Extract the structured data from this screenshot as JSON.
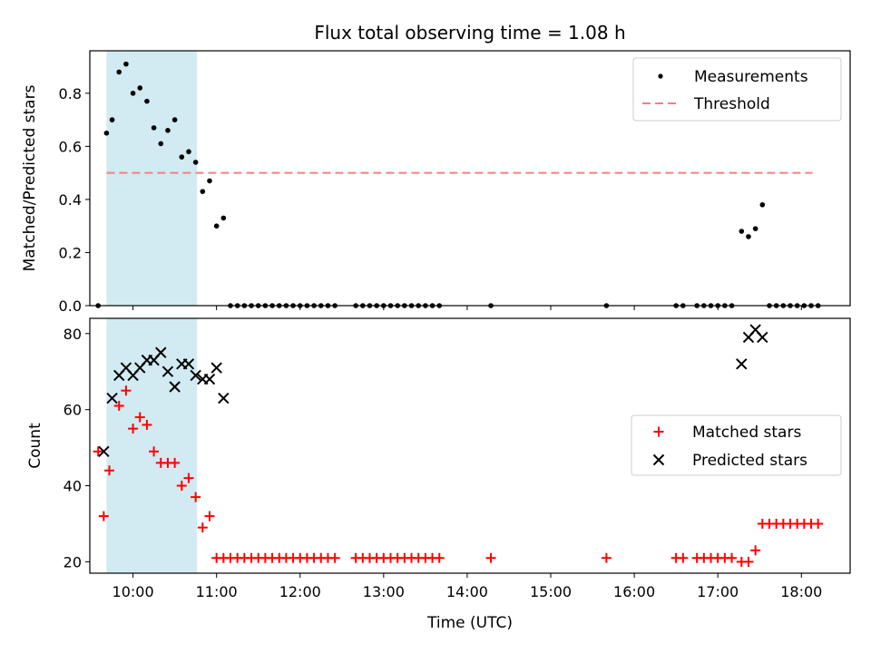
{
  "chart_data": [
    {
      "type": "scatter",
      "title": "Flux total observing time = 1.08 h",
      "ylabel": "Matched/Predicted stars",
      "xlabel": "",
      "xlim": [
        "09:29",
        "18:35"
      ],
      "ylim": [
        0,
        0.96
      ],
      "yticks": [
        "0.0",
        "0.2",
        "0.4",
        "0.6",
        "0.8"
      ],
      "ytick_values": [
        0,
        0.2,
        0.4,
        0.6,
        0.8
      ],
      "xticks_values": [
        "10:00",
        "11:00",
        "12:00",
        "13:00",
        "14:00",
        "15:00",
        "16:00",
        "17:00",
        "18:00"
      ],
      "xticklabels_shown": false,
      "grid": false,
      "legend_position": "top-right",
      "highlight_span": {
        "start": "09:41",
        "end": "10:46",
        "color": "#d2eaf1"
      },
      "series": [
        {
          "name": "Measurements",
          "style": "dot",
          "color": "#000000",
          "points": [
            [
              "09:35",
              0
            ],
            [
              "09:41",
              0.65
            ],
            [
              "09:45",
              0.7
            ],
            [
              "09:50",
              0.88
            ],
            [
              "09:55",
              0.91
            ],
            [
              "10:00",
              0.8
            ],
            [
              "10:05",
              0.82
            ],
            [
              "10:10",
              0.77
            ],
            [
              "10:15",
              0.67
            ],
            [
              "10:20",
              0.61
            ],
            [
              "10:25",
              0.66
            ],
            [
              "10:30",
              0.7
            ],
            [
              "10:35",
              0.56
            ],
            [
              "10:40",
              0.58
            ],
            [
              "10:45",
              0.54
            ],
            [
              "10:50",
              0.43
            ],
            [
              "10:55",
              0.47
            ],
            [
              "11:00",
              0.3
            ],
            [
              "11:05",
              0.33
            ],
            [
              "11:10",
              0
            ],
            [
              "11:15",
              0
            ],
            [
              "11:20",
              0
            ],
            [
              "11:25",
              0
            ],
            [
              "11:30",
              0
            ],
            [
              "11:35",
              0
            ],
            [
              "11:40",
              0
            ],
            [
              "11:45",
              0
            ],
            [
              "11:50",
              0
            ],
            [
              "11:55",
              0
            ],
            [
              "12:00",
              0
            ],
            [
              "12:05",
              0
            ],
            [
              "12:10",
              0
            ],
            [
              "12:15",
              0
            ],
            [
              "12:20",
              0
            ],
            [
              "12:25",
              0
            ],
            [
              "12:40",
              0
            ],
            [
              "12:45",
              0
            ],
            [
              "12:50",
              0
            ],
            [
              "12:55",
              0
            ],
            [
              "13:00",
              0
            ],
            [
              "13:05",
              0
            ],
            [
              "13:10",
              0
            ],
            [
              "13:15",
              0
            ],
            [
              "13:20",
              0
            ],
            [
              "13:25",
              0
            ],
            [
              "13:30",
              0
            ],
            [
              "13:35",
              0
            ],
            [
              "13:40",
              0
            ],
            [
              "14:17",
              0
            ],
            [
              "15:40",
              0
            ],
            [
              "16:30",
              0
            ],
            [
              "16:35",
              0
            ],
            [
              "16:45",
              0
            ],
            [
              "16:50",
              0
            ],
            [
              "16:55",
              0
            ],
            [
              "17:00",
              0
            ],
            [
              "17:05",
              0
            ],
            [
              "17:10",
              0
            ],
            [
              "17:17",
              0.28
            ],
            [
              "17:22",
              0.26
            ],
            [
              "17:27",
              0.29
            ],
            [
              "17:32",
              0.38
            ],
            [
              "17:37",
              0
            ],
            [
              "17:42",
              0
            ],
            [
              "17:47",
              0
            ],
            [
              "17:52",
              0
            ],
            [
              "17:57",
              0
            ],
            [
              "18:02",
              0
            ],
            [
              "18:07",
              0
            ],
            [
              "18:12",
              0
            ]
          ]
        },
        {
          "name": "Threshold",
          "style": "dashed-line",
          "color": "#f08080",
          "points": [
            [
              "09:41",
              0.5
            ],
            [
              "18:08",
              0.5
            ]
          ]
        }
      ]
    },
    {
      "type": "scatter",
      "title": "",
      "ylabel": "Count",
      "xlabel": "Time (UTC)",
      "xlim": [
        "09:29",
        "18:35"
      ],
      "ylim": [
        17,
        84
      ],
      "yticks": [
        "20",
        "40",
        "60",
        "80"
      ],
      "ytick_values": [
        20,
        40,
        60,
        80
      ],
      "xticks": [
        "10:00",
        "11:00",
        "12:00",
        "13:00",
        "14:00",
        "15:00",
        "16:00",
        "17:00",
        "18:00"
      ],
      "grid": false,
      "legend_position": "center-right",
      "highlight_span": {
        "start": "09:41",
        "end": "10:46",
        "color": "#d2eaf1"
      },
      "series": [
        {
          "name": "Matched stars",
          "style": "plus",
          "color": "#ff0000",
          "points": [
            [
              "09:35",
              49
            ],
            [
              "09:39",
              32
            ],
            [
              "09:43",
              44
            ],
            [
              "09:50",
              61
            ],
            [
              "09:55",
              65
            ],
            [
              "10:00",
              55
            ],
            [
              "10:05",
              58
            ],
            [
              "10:10",
              56
            ],
            [
              "10:15",
              49
            ],
            [
              "10:20",
              46
            ],
            [
              "10:25",
              46
            ],
            [
              "10:30",
              46
            ],
            [
              "10:35",
              40
            ],
            [
              "10:40",
              42
            ],
            [
              "10:45",
              37
            ],
            [
              "10:50",
              29
            ],
            [
              "10:55",
              32
            ],
            [
              "11:00",
              21
            ],
            [
              "11:05",
              21
            ],
            [
              "11:10",
              21
            ],
            [
              "11:15",
              21
            ],
            [
              "11:20",
              21
            ],
            [
              "11:25",
              21
            ],
            [
              "11:30",
              21
            ],
            [
              "11:35",
              21
            ],
            [
              "11:40",
              21
            ],
            [
              "11:45",
              21
            ],
            [
              "11:50",
              21
            ],
            [
              "11:55",
              21
            ],
            [
              "12:00",
              21
            ],
            [
              "12:05",
              21
            ],
            [
              "12:10",
              21
            ],
            [
              "12:15",
              21
            ],
            [
              "12:20",
              21
            ],
            [
              "12:25",
              21
            ],
            [
              "12:40",
              21
            ],
            [
              "12:45",
              21
            ],
            [
              "12:50",
              21
            ],
            [
              "12:55",
              21
            ],
            [
              "13:00",
              21
            ],
            [
              "13:05",
              21
            ],
            [
              "13:10",
              21
            ],
            [
              "13:15",
              21
            ],
            [
              "13:20",
              21
            ],
            [
              "13:25",
              21
            ],
            [
              "13:30",
              21
            ],
            [
              "13:35",
              21
            ],
            [
              "13:40",
              21
            ],
            [
              "14:17",
              21
            ],
            [
              "15:40",
              21
            ],
            [
              "16:30",
              21
            ],
            [
              "16:35",
              21
            ],
            [
              "16:45",
              21
            ],
            [
              "16:50",
              21
            ],
            [
              "16:55",
              21
            ],
            [
              "17:00",
              21
            ],
            [
              "17:05",
              21
            ],
            [
              "17:10",
              21
            ],
            [
              "17:17",
              20
            ],
            [
              "17:22",
              20
            ],
            [
              "17:27",
              23
            ],
            [
              "17:32",
              30
            ],
            [
              "17:37",
              30
            ],
            [
              "17:42",
              30
            ],
            [
              "17:47",
              30
            ],
            [
              "17:52",
              30
            ],
            [
              "17:57",
              30
            ],
            [
              "18:02",
              30
            ],
            [
              "18:07",
              30
            ],
            [
              "18:12",
              30
            ]
          ]
        },
        {
          "name": "Predicted stars",
          "style": "x",
          "color": "#000000",
          "points": [
            [
              "09:39",
              49
            ],
            [
              "09:45",
              63
            ],
            [
              "09:50",
              69
            ],
            [
              "09:55",
              71
            ],
            [
              "10:00",
              69
            ],
            [
              "10:05",
              71
            ],
            [
              "10:10",
              73
            ],
            [
              "10:15",
              73
            ],
            [
              "10:20",
              75
            ],
            [
              "10:25",
              70
            ],
            [
              "10:30",
              66
            ],
            [
              "10:35",
              72
            ],
            [
              "10:40",
              72
            ],
            [
              "10:45",
              69
            ],
            [
              "10:50",
              68
            ],
            [
              "10:55",
              68
            ],
            [
              "11:00",
              71
            ],
            [
              "11:05",
              63
            ],
            [
              "17:17",
              72
            ],
            [
              "17:22",
              79
            ],
            [
              "17:27",
              81
            ],
            [
              "17:32",
              79
            ]
          ]
        }
      ]
    }
  ]
}
